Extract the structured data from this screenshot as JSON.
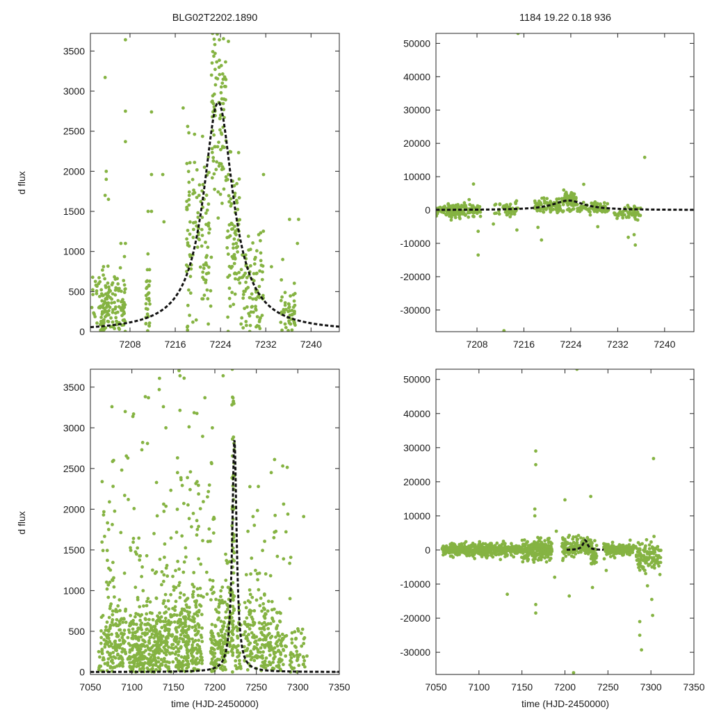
{
  "figure": {
    "title_left": "BLG02T2202.1890",
    "title_right": "1184  19.22  0.18  936",
    "ylabel": "d flux",
    "xlabel": "time (HJD-2450000)",
    "point_color": "#85b342",
    "model_color": "#111111"
  },
  "chart_data": [
    {
      "id": "top-left",
      "type": "scatter",
      "title": "BLG02T2202.1890",
      "xlabel": "",
      "ylabel": "d flux",
      "xlim": [
        7201,
        7245
      ],
      "ylim": [
        0,
        3720
      ],
      "xticks": [
        7208,
        7216,
        7224,
        7232,
        7240
      ],
      "yticks": [
        0,
        500,
        1000,
        1500,
        2000,
        2500,
        3000,
        3500
      ],
      "model": {
        "t0": 7223.6,
        "amp": 2860,
        "tE": 3.2
      },
      "clusters": [
        {
          "x": [
            7201.2,
            7204.2
          ],
          "y": [
            350,
            250
          ],
          "n": 40
        },
        {
          "x": [
            7202.6,
            7207.2
          ],
          "y": [
            300,
            230
          ],
          "n": 120
        },
        {
          "x": [
            7210.8,
            7211.6
          ],
          "y": [
            300,
            300
          ],
          "n": 30
        },
        {
          "x": [
            7218.0,
            7222.4
          ],
          "y": [
            1150,
            650
          ],
          "n": 110
        },
        {
          "x": [
            7222.4,
            7225.0
          ],
          "y": [
            2650,
            600
          ],
          "n": 90
        },
        {
          "x": [
            7225.0,
            7227.4
          ],
          "y": [
            1150,
            500
          ],
          "n": 80
        },
        {
          "x": [
            7227.4,
            7231.6
          ],
          "y": [
            500,
            350
          ],
          "n": 90
        },
        {
          "x": [
            7234.6,
            7237.2
          ],
          "y": [
            260,
            170
          ],
          "n": 50
        }
      ],
      "points": [
        {
          "x": 7203.6,
          "y": 3170
        },
        {
          "x": 7207.2,
          "y": 3640
        },
        {
          "x": 7207.2,
          "y": 2750
        },
        {
          "x": 7207.2,
          "y": 2370
        },
        {
          "x": 7211.8,
          "y": 2740
        },
        {
          "x": 7211.8,
          "y": 1960
        },
        {
          "x": 7213.8,
          "y": 1960
        },
        {
          "x": 7203.8,
          "y": 2000
        },
        {
          "x": 7203.8,
          "y": 1900
        },
        {
          "x": 7203.6,
          "y": 1700
        },
        {
          "x": 7204.2,
          "y": 1650
        },
        {
          "x": 7211.2,
          "y": 1500
        },
        {
          "x": 7211.8,
          "y": 1500
        },
        {
          "x": 7206.4,
          "y": 1100
        },
        {
          "x": 7207.2,
          "y": 1100
        },
        {
          "x": 7214.0,
          "y": 1370
        },
        {
          "x": 7217.4,
          "y": 2790
        },
        {
          "x": 7218.2,
          "y": 2560
        },
        {
          "x": 7218.4,
          "y": 2480
        },
        {
          "x": 7222.6,
          "y": 3720
        },
        {
          "x": 7223.8,
          "y": 3640
        },
        {
          "x": 7225.4,
          "y": 3620
        },
        {
          "x": 7223.0,
          "y": 3580
        },
        {
          "x": 7231.6,
          "y": 1960
        },
        {
          "x": 7236.2,
          "y": 1400
        },
        {
          "x": 7237.8,
          "y": 1400
        },
        {
          "x": 7237.6,
          "y": 1100
        },
        {
          "x": 7235.0,
          "y": 900
        },
        {
          "x": 7233.0,
          "y": 810
        }
      ]
    },
    {
      "id": "top-right",
      "type": "scatter",
      "title": "1184  19.22  0.18  936",
      "xlabel": "",
      "ylabel": "",
      "xlim": [
        7201,
        7245
      ],
      "ylim": [
        -36500,
        53000
      ],
      "xticks": [
        7208,
        7216,
        7224,
        7232,
        7240
      ],
      "yticks": [
        -30000,
        -20000,
        -10000,
        0,
        10000,
        20000,
        30000,
        40000,
        50000
      ],
      "model": {
        "t0": 7223.6,
        "amp": 2860,
        "tE": 3.2
      },
      "clusters": [
        {
          "x": [
            7201.0,
            7208.6
          ],
          "y": [
            0,
            1000
          ],
          "n": 170
        },
        {
          "x": [
            7211.0,
            7215.0
          ],
          "y": [
            0,
            900
          ],
          "n": 50
        },
        {
          "x": [
            7217.8,
            7222.4
          ],
          "y": [
            1200,
            1100
          ],
          "n": 90
        },
        {
          "x": [
            7222.4,
            7225.0
          ],
          "y": [
            2800,
            1400
          ],
          "n": 80
        },
        {
          "x": [
            7225.0,
            7230.4
          ],
          "y": [
            600,
            900
          ],
          "n": 80
        },
        {
          "x": [
            7231.4,
            7236.0
          ],
          "y": [
            -800,
            1100
          ],
          "n": 60
        }
      ],
      "points": [
        {
          "x": 7215.0,
          "y": 53000
        },
        {
          "x": 7212.6,
          "y": -36200
        },
        {
          "x": 7236.6,
          "y": 15800
        },
        {
          "x": 7208.2,
          "y": -13500
        },
        {
          "x": 7208.2,
          "y": -6400
        },
        {
          "x": 7207.4,
          "y": 7800
        },
        {
          "x": 7214.8,
          "y": -6000
        },
        {
          "x": 7219.0,
          "y": -9000
        },
        {
          "x": 7218.4,
          "y": -5200
        },
        {
          "x": 7226.2,
          "y": 7700
        },
        {
          "x": 7222.8,
          "y": 6000
        },
        {
          "x": 7233.8,
          "y": -8200
        },
        {
          "x": 7235.0,
          "y": -10500
        },
        {
          "x": 7228.6,
          "y": -5000
        },
        {
          "x": 7234.8,
          "y": -7400
        },
        {
          "x": 7203.6,
          "y": -3000
        },
        {
          "x": 7210.8,
          "y": -4200
        }
      ]
    },
    {
      "id": "bottom-left",
      "type": "scatter",
      "title": "",
      "xlabel": "time (HJD-2450000)",
      "ylabel": "d flux",
      "xlim": [
        7050,
        7350
      ],
      "ylim": [
        -30,
        3720
      ],
      "xticks": [
        7050,
        7100,
        7150,
        7200,
        7250,
        7300,
        7350
      ],
      "yticks": [
        0,
        500,
        1000,
        1500,
        2000,
        2500,
        3000,
        3500
      ],
      "model": {
        "t0": 7223.6,
        "amp": 2860,
        "tE": 3.2
      },
      "clusters": [
        {
          "x": [
            7060,
            7070
          ],
          "y": [
            250,
            230
          ],
          "n": 30
        },
        {
          "x": [
            7070,
            7093
          ],
          "y": [
            320,
            300
          ],
          "n": 130
        },
        {
          "x": [
            7095,
            7110
          ],
          "y": [
            300,
            280
          ],
          "n": 90
        },
        {
          "x": [
            7110,
            7135
          ],
          "y": [
            360,
            330
          ],
          "n": 170
        },
        {
          "x": [
            7135,
            7185
          ],
          "y": [
            400,
            350
          ],
          "n": 330
        },
        {
          "x": [
            7195,
            7213
          ],
          "y": [
            380,
            330
          ],
          "n": 130
        },
        {
          "x": [
            7213,
            7222
          ],
          "y": [
            500,
            420
          ],
          "n": 50
        },
        {
          "x": [
            7220.5,
            7223.5
          ],
          "y": [
            1900,
            1100
          ],
          "n": 60
        },
        {
          "x": [
            7224,
            7232
          ],
          "y": [
            300,
            250
          ],
          "n": 30
        },
        {
          "x": [
            7235,
            7262
          ],
          "y": [
            420,
            330
          ],
          "n": 130
        },
        {
          "x": [
            7262,
            7280
          ],
          "y": [
            330,
            280
          ],
          "n": 70
        },
        {
          "x": [
            7280,
            7312
          ],
          "y": [
            220,
            220
          ],
          "n": 60
        },
        {
          "x": [
            7062,
            7125
          ],
          "y": [
            1500,
            800
          ],
          "n": 60
        },
        {
          "x": [
            7125,
            7200
          ],
          "y": [
            1700,
            900
          ],
          "n": 90
        },
        {
          "x": [
            7235,
            7300
          ],
          "y": [
            1300,
            700
          ],
          "n": 40
        }
      ],
      "points": [
        {
          "x": 7076,
          "y": 3260
        },
        {
          "x": 7092,
          "y": 3200
        },
        {
          "x": 7102,
          "y": 3170
        },
        {
          "x": 7112,
          "y": 2730
        },
        {
          "x": 7113,
          "y": 2820
        },
        {
          "x": 7120,
          "y": 3370
        },
        {
          "x": 7133,
          "y": 3470
        },
        {
          "x": 7138,
          "y": 3260
        },
        {
          "x": 7141,
          "y": 3000
        },
        {
          "x": 7158,
          "y": 3640
        },
        {
          "x": 7163,
          "y": 3610
        },
        {
          "x": 7188,
          "y": 3370
        },
        {
          "x": 7210,
          "y": 3640
        },
        {
          "x": 7197,
          "y": 3000
        },
        {
          "x": 7078,
          "y": 2600
        },
        {
          "x": 7073,
          "y": 2090
        },
        {
          "x": 7155,
          "y": 2450
        },
        {
          "x": 7268,
          "y": 2450
        },
        {
          "x": 7272,
          "y": 2610
        },
        {
          "x": 7288,
          "y": 1940
        },
        {
          "x": 7307,
          "y": 1910
        },
        {
          "x": 7246,
          "y": 1910
        },
        {
          "x": 7221,
          "y": 3720
        }
      ]
    },
    {
      "id": "bottom-right",
      "type": "scatter",
      "title": "",
      "xlabel": "time (HJD-2450000)",
      "ylabel": "",
      "xlim": [
        7050,
        7350
      ],
      "ylim": [
        -36500,
        53000
      ],
      "xticks": [
        7050,
        7100,
        7150,
        7200,
        7250,
        7300,
        7350
      ],
      "yticks": [
        -30000,
        -20000,
        -10000,
        0,
        10000,
        20000,
        30000,
        40000,
        50000
      ],
      "model": {
        "t0": 7223.6,
        "amp": 2860,
        "tE": 3.2,
        "xrange": [
          7202,
          7245
        ]
      },
      "clusters": [
        {
          "x": [
            7057,
            7083
          ],
          "y": [
            0,
            700
          ],
          "n": 160
        },
        {
          "x": [
            7083,
            7150
          ],
          "y": [
            0,
            900
          ],
          "n": 380
        },
        {
          "x": [
            7150,
            7185
          ],
          "y": [
            0,
            1500
          ],
          "n": 220
        },
        {
          "x": [
            7196,
            7214
          ],
          "y": [
            300,
            1500
          ],
          "n": 80
        },
        {
          "x": [
            7214,
            7230
          ],
          "y": [
            1000,
            1300
          ],
          "n": 70
        },
        {
          "x": [
            7230,
            7237
          ],
          "y": [
            -1200,
            1600
          ],
          "n": 40
        },
        {
          "x": [
            7245,
            7280
          ],
          "y": [
            0,
            900
          ],
          "n": 170
        },
        {
          "x": [
            7282,
            7312
          ],
          "y": [
            -1800,
            2000
          ],
          "n": 120
        }
      ],
      "points": [
        {
          "x": 7214,
          "y": 53000
        },
        {
          "x": 7210,
          "y": -36000
        },
        {
          "x": 7303,
          "y": 26800
        },
        {
          "x": 7166,
          "y": 29000
        },
        {
          "x": 7166,
          "y": 25000
        },
        {
          "x": 7165,
          "y": 12000
        },
        {
          "x": 7165,
          "y": 10000
        },
        {
          "x": 7166,
          "y": -16000
        },
        {
          "x": 7166,
          "y": -18500
        },
        {
          "x": 7133,
          "y": -13000
        },
        {
          "x": 7200,
          "y": 14700
        },
        {
          "x": 7230,
          "y": 15700
        },
        {
          "x": 7287,
          "y": -21000
        },
        {
          "x": 7287,
          "y": -25000
        },
        {
          "x": 7289,
          "y": -29300
        },
        {
          "x": 7302,
          "y": -19200
        },
        {
          "x": 7301,
          "y": -14500
        },
        {
          "x": 7205,
          "y": -13500
        },
        {
          "x": 7232,
          "y": -11000
        },
        {
          "x": 7188,
          "y": -8000
        },
        {
          "x": 7296,
          "y": -10500
        },
        {
          "x": 7248,
          "y": -6000
        },
        {
          "x": 7190,
          "y": 5500
        }
      ]
    }
  ]
}
